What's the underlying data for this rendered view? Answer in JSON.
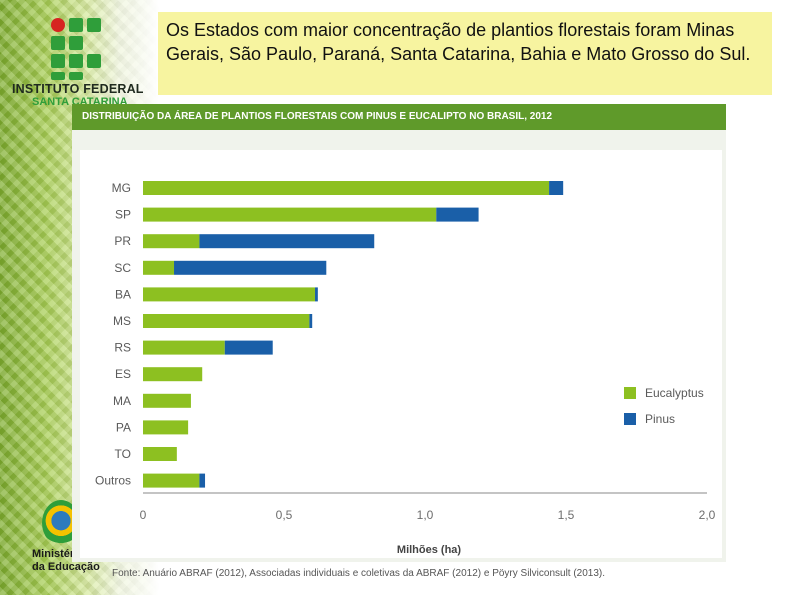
{
  "logo": {
    "line1": "INSTITUTO FEDERAL",
    "line2": "SANTA CATARINA",
    "colors": {
      "green": "#2f9e3a",
      "red": "#d62420"
    }
  },
  "callout": {
    "text": "Os Estados com maior concentração de plantios florestais foram Minas Gerais, São Paulo, Paraná, Santa Catarina, Bahia e Mato Grosso do Sul."
  },
  "ministry": {
    "line1": "Ministério",
    "line2": "da Educação"
  },
  "source": "Fonte: Anuário ABRAF (2012), Associadas individuais e coletivas da ABRAF (2012) e Pöyry Silviconsult (2013).",
  "chart_data": {
    "type": "bar",
    "orientation": "horizontal",
    "stacked": true,
    "title": "DISTRIBUIÇÃO DA ÁREA DE PLANTIOS FLORESTAIS COM PINUS E EUCALIPTO NO BRASIL, 2012",
    "xlabel": "Milhões (ha)",
    "ylabel": "",
    "xlim": [
      0,
      2.0
    ],
    "xticks": [
      "0",
      "0,5",
      "1,0",
      "1,5",
      "2,0"
    ],
    "xtick_values": [
      0,
      0.5,
      1.0,
      1.5,
      2.0
    ],
    "categories": [
      "MG",
      "SP",
      "PR",
      "SC",
      "BA",
      "MS",
      "RS",
      "ES",
      "MA",
      "PA",
      "TO",
      "Outros"
    ],
    "series": [
      {
        "name": "Eucalyptus",
        "color": "#8dc021",
        "values": [
          1.44,
          1.04,
          0.2,
          0.11,
          0.61,
          0.59,
          0.29,
          0.21,
          0.17,
          0.16,
          0.12,
          0.2
        ]
      },
      {
        "name": "Pinus",
        "color": "#1a5fa8",
        "values": [
          0.05,
          0.15,
          0.62,
          0.54,
          0.01,
          0.01,
          0.17,
          0.0,
          0.0,
          0.0,
          0.0,
          0.02
        ]
      }
    ],
    "legend_position": "right",
    "grid": false
  }
}
